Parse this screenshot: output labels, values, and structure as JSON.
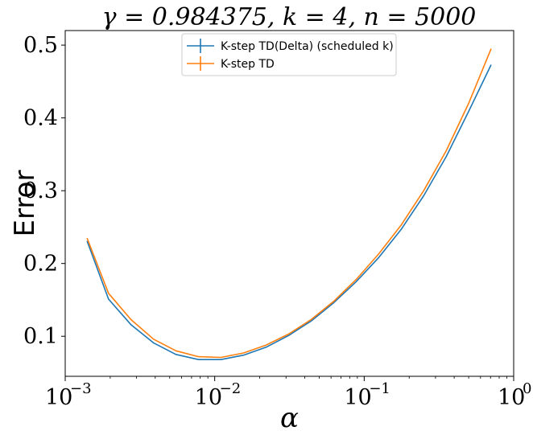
{
  "chart_data": {
    "type": "line",
    "title": "γ = 0.984375, k = 4, n = 5000",
    "xlabel": "α",
    "ylabel": "Error",
    "xscale": "log",
    "xlim": [
      0.001,
      1
    ],
    "ylim": [
      0.045,
      0.52
    ],
    "xticks": [
      {
        "base": "10",
        "exp": "−3"
      },
      {
        "base": "10",
        "exp": "−2"
      },
      {
        "base": "10",
        "exp": "−1"
      },
      {
        "base": "10",
        "exp": "0"
      }
    ],
    "yticks": [
      "0.1",
      "0.2",
      "0.3",
      "0.4",
      "0.5"
    ],
    "ytick_values": [
      0.1,
      0.2,
      0.3,
      0.4,
      0.5
    ],
    "grid": false,
    "legend_position": "top-center",
    "x": [
      0.0014,
      0.00195,
      0.00275,
      0.0039,
      0.0055,
      0.0078,
      0.011,
      0.0156,
      0.0221,
      0.0312,
      0.0442,
      0.0625,
      0.0884,
      0.125,
      0.177,
      0.25,
      0.354,
      0.5,
      0.707
    ],
    "series": [
      {
        "name": "K-step TD(Delta) (scheduled k)",
        "color": "#1f77b4",
        "values": [
          0.231,
          0.151,
          0.116,
          0.091,
          0.075,
          0.068,
          0.068,
          0.074,
          0.085,
          0.101,
          0.121,
          0.146,
          0.175,
          0.208,
          0.247,
          0.293,
          0.347,
          0.409,
          0.473
        ]
      },
      {
        "name": "K-step TD",
        "color": "#ff7f0e",
        "values": [
          0.235,
          0.159,
          0.123,
          0.096,
          0.08,
          0.072,
          0.071,
          0.077,
          0.088,
          0.103,
          0.123,
          0.148,
          0.178,
          0.213,
          0.253,
          0.3,
          0.355,
          0.42,
          0.495
        ]
      }
    ]
  }
}
